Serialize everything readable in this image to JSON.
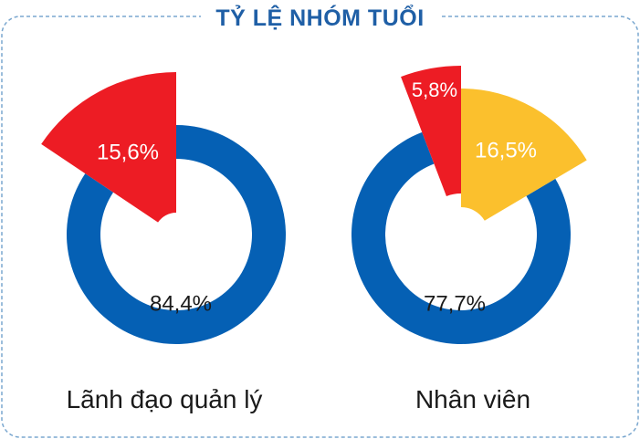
{
  "title": "TỶ LỆ NHÓM TUỔI",
  "colors": {
    "accent": "#1f5fa6",
    "blue": "#0560b4",
    "red": "#ed1c24",
    "yellow": "#fbc02d",
    "border": "#7aa7cf"
  },
  "chart_data": [
    {
      "type": "pie",
      "category": "Lãnh đạo quản lý",
      "slices": [
        {
          "label": "84,4%",
          "value": 84.4,
          "color": "#0560b4"
        },
        {
          "label": "15,6%",
          "value": 15.6,
          "color": "#ed1c24"
        }
      ]
    },
    {
      "type": "pie",
      "category": "Nhân viên",
      "slices": [
        {
          "label": "77,7%",
          "value": 77.7,
          "color": "#0560b4"
        },
        {
          "label": "16,5%",
          "value": 16.5,
          "color": "#fbc02d"
        },
        {
          "label": "5,8%",
          "value": 5.8,
          "color": "#ed1c24"
        }
      ]
    }
  ]
}
